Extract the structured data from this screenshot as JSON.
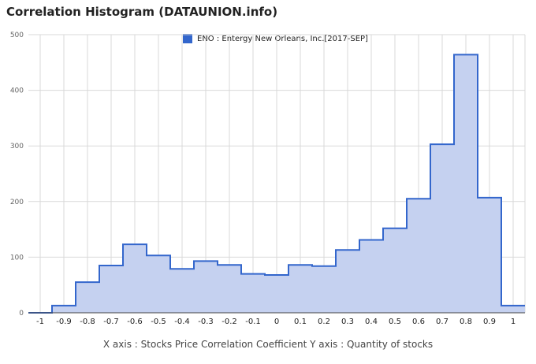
{
  "page": {
    "title": "Correlation Histogram (DATAUNION.info)",
    "caption": "X axis : Stocks Price Correlation Coefficient  Y axis : Quantity of stocks"
  },
  "colors": {
    "line": "#3366cc",
    "fill": "#c5d1f0",
    "grid": "#d9d9d9",
    "axis": "#444444"
  },
  "chart_data": {
    "type": "area",
    "title": "Correlation Histogram (DATAUNION.info)",
    "xlabel": "X axis : Stocks Price Correlation Coefficient",
    "ylabel": "Y axis : Quantity of stocks",
    "xlim": [
      -1.05,
      1.05
    ],
    "ylim": [
      0,
      500
    ],
    "xticks": [
      -1,
      -0.9,
      -0.8,
      -0.7,
      -0.6,
      -0.5,
      -0.4,
      -0.3,
      -0.2,
      -0.1,
      0,
      0.1,
      0.2,
      0.3,
      0.4,
      0.5,
      0.6,
      0.7,
      0.8,
      0.9,
      1
    ],
    "xtick_labels": [
      "-1",
      "-0.9",
      "-0.8",
      "-0.7",
      "-0.6",
      "-0.5",
      "-0.4",
      "-0.3",
      "-0.2",
      "-0.1",
      "0",
      "0.1",
      "0.2",
      "0.3",
      "0.4",
      "0.5",
      "0.6",
      "0.7",
      "0.8",
      "0.9",
      "1"
    ],
    "yticks": [
      0,
      100,
      200,
      300,
      400,
      500
    ],
    "ytick_labels": [
      "0",
      "100",
      "200",
      "300",
      "400",
      "500"
    ],
    "grid": true,
    "legend": "top-center",
    "series": [
      {
        "name": "ENO : Entergy New Orleans, Inc.[2017-SEP]",
        "x": [
          -1,
          -0.9,
          -0.8,
          -0.7,
          -0.6,
          -0.5,
          -0.4,
          -0.3,
          -0.2,
          -0.1,
          0,
          0.1,
          0.2,
          0.3,
          0.4,
          0.5,
          0.6,
          0.7,
          0.8,
          0.9,
          1
        ],
        "values": [
          0,
          13,
          55,
          85,
          123,
          103,
          79,
          93,
          86,
          70,
          68,
          86,
          84,
          113,
          131,
          152,
          205,
          303,
          464,
          207,
          13
        ]
      }
    ]
  }
}
